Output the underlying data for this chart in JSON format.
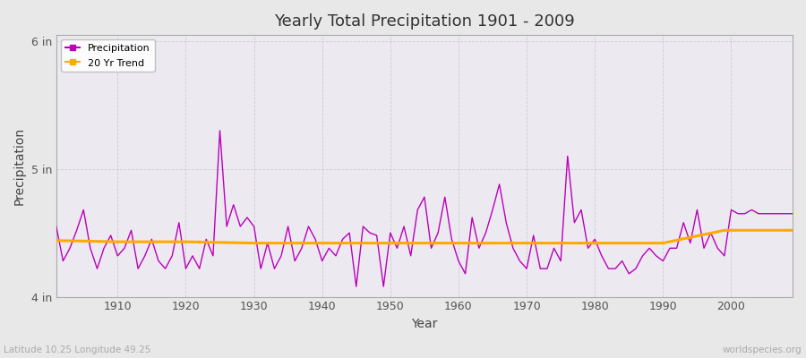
{
  "title": "Yearly Total Precipitation 1901 - 2009",
  "xlabel": "Year",
  "ylabel": "Precipitation",
  "lat_lon_label": "Latitude 10.25 Longitude 49.25",
  "watermark": "worldspecies.org",
  "precip_color": "#bb00bb",
  "trend_color": "#ffaa00",
  "bg_color": "#e8e8e8",
  "plot_bg_color": "#eceaf0",
  "grid_color": "#c8c8c8",
  "years": [
    1901,
    1902,
    1903,
    1904,
    1905,
    1906,
    1907,
    1908,
    1909,
    1910,
    1911,
    1912,
    1913,
    1914,
    1915,
    1916,
    1917,
    1918,
    1919,
    1920,
    1921,
    1922,
    1923,
    1924,
    1925,
    1926,
    1927,
    1928,
    1929,
    1930,
    1931,
    1932,
    1933,
    1934,
    1935,
    1936,
    1937,
    1938,
    1939,
    1940,
    1941,
    1942,
    1943,
    1944,
    1945,
    1946,
    1947,
    1948,
    1949,
    1950,
    1951,
    1952,
    1953,
    1954,
    1955,
    1956,
    1957,
    1958,
    1959,
    1960,
    1961,
    1962,
    1963,
    1964,
    1965,
    1966,
    1967,
    1968,
    1969,
    1970,
    1971,
    1972,
    1973,
    1974,
    1975,
    1976,
    1977,
    1978,
    1979,
    1980,
    1981,
    1982,
    1983,
    1984,
    1985,
    1986,
    1987,
    1988,
    1989,
    1990,
    1991,
    1992,
    1993,
    1994,
    1995,
    1996,
    1997,
    1998,
    1999,
    2000,
    2001,
    2002,
    2003,
    2004,
    2005,
    2006,
    2007,
    2008,
    2009
  ],
  "precip": [
    4.55,
    4.28,
    4.38,
    4.52,
    4.68,
    4.38,
    4.22,
    4.38,
    4.48,
    4.32,
    4.38,
    4.52,
    4.22,
    4.32,
    4.45,
    4.28,
    4.22,
    4.32,
    4.58,
    4.22,
    4.32,
    4.22,
    4.45,
    4.32,
    5.3,
    4.55,
    4.72,
    4.55,
    4.62,
    4.55,
    4.22,
    4.42,
    4.22,
    4.32,
    4.55,
    4.28,
    4.38,
    4.55,
    4.45,
    4.28,
    4.38,
    4.32,
    4.45,
    4.5,
    4.08,
    4.55,
    4.5,
    4.48,
    4.08,
    4.5,
    4.38,
    4.55,
    4.32,
    4.68,
    4.78,
    4.38,
    4.5,
    4.78,
    4.45,
    4.28,
    4.18,
    4.62,
    4.38,
    4.5,
    4.68,
    4.88,
    4.58,
    4.38,
    4.28,
    4.22,
    4.48,
    4.22,
    4.22,
    4.38,
    4.28,
    5.1,
    4.58,
    4.68,
    4.38,
    4.45,
    4.32,
    4.22,
    4.22,
    4.28,
    4.18,
    4.22,
    4.32,
    4.38,
    4.32,
    4.28,
    4.38,
    4.38,
    4.58,
    4.42,
    4.68,
    4.38,
    4.5,
    4.38,
    4.32,
    4.68,
    4.65,
    4.65,
    4.68,
    4.65,
    4.65,
    4.65,
    4.65,
    4.65,
    4.65
  ],
  "trend_years": [
    1901,
    1910,
    1920,
    1930,
    1940,
    1950,
    1960,
    1968,
    1975,
    1980,
    1990,
    1999,
    2009
  ],
  "trend_values": [
    4.44,
    4.43,
    4.43,
    4.42,
    4.42,
    4.42,
    4.42,
    4.42,
    4.42,
    4.42,
    4.42,
    4.52,
    4.52
  ],
  "ylim": [
    4.0,
    6.05
  ],
  "yticks": [
    4.0,
    5.0,
    6.0
  ],
  "ytick_labels": [
    "4 in",
    "5 in",
    "6 in"
  ],
  "xticks": [
    1910,
    1920,
    1930,
    1940,
    1950,
    1960,
    1970,
    1980,
    1990,
    2000
  ],
  "figwidth": 9.0,
  "figheight": 4.0,
  "dpi": 100
}
